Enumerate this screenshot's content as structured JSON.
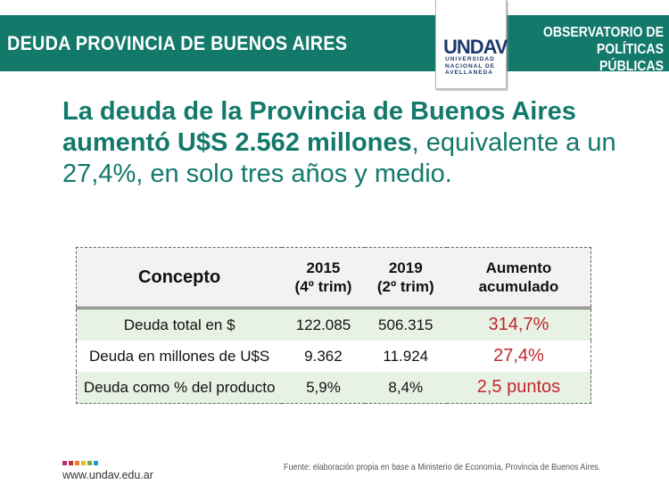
{
  "header": {
    "title": "DEUDA PROVINCIA DE BUENOS AIRES",
    "logo_mark": "UNDAV",
    "logo_sub": [
      "UNIVERSIDAD",
      "NACIONAL DE",
      "AVELLANEDA"
    ],
    "observatorio": [
      "OBSERVATORIO DE",
      "POLÍTICAS PÚBLICAS"
    ]
  },
  "headline": {
    "bold": "La deuda de la Provincia de Buenos Aires aumentó U$S 2.562 millones",
    "rest": ", equivalente a un 27,4%, en solo tres años y medio."
  },
  "table": {
    "headers": [
      [
        "Concepto"
      ],
      [
        "2015",
        "(4º trim)"
      ],
      [
        "2019",
        "(2º trim)"
      ],
      [
        "Aumento",
        "acumulado"
      ]
    ],
    "rows": [
      [
        "Deuda total en $",
        "122.085",
        "506.315",
        "314,7%"
      ],
      [
        "Deuda en millones de U$S",
        "9.362",
        "11.924",
        "27,4%"
      ],
      [
        "Deuda como % del producto",
        "5,9%",
        "8,4%",
        "2,5 puntos"
      ]
    ]
  },
  "footer": {
    "url": "www.undav.edu.ar",
    "source": "Fuente: elaboración propia en base a Ministerio de Economía, Provincia de Buenos Aires.",
    "dot_colors": [
      "#b0337a",
      "#d42a2a",
      "#e8772a",
      "#f1b51c",
      "#6fb33f",
      "#1e9bc9"
    ]
  },
  "colors": {
    "brand": "#12796b",
    "accent": "#c0262c"
  }
}
